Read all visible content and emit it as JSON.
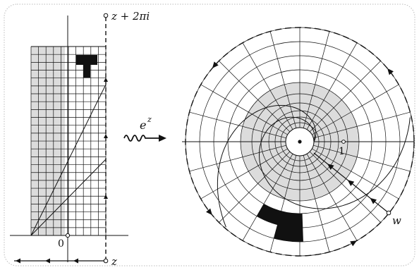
{
  "left_panel": {
    "top_label": "z + 2πi",
    "bottom_label": "z",
    "origin_label": "0"
  },
  "map": {
    "base": "e",
    "exponent": "z",
    "arrow_icon": "wavy-arrow-icon"
  },
  "right_panel": {
    "unit_label": "1",
    "point_label": "w"
  },
  "colors": {
    "ink": "#111111",
    "shade": "#dcdcdc",
    "frame": "#bbbbbb"
  }
}
